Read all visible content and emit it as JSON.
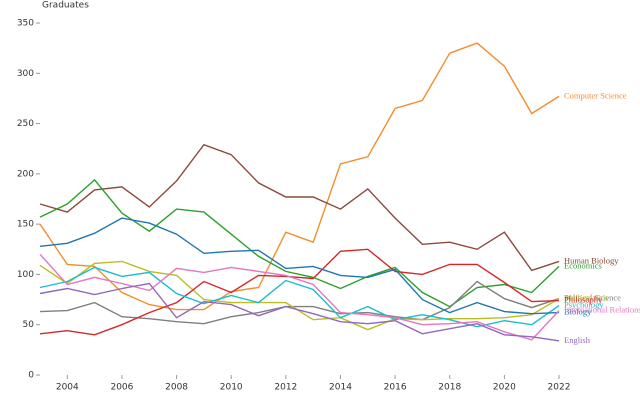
{
  "chart_data": {
    "type": "line",
    "y_label": "Graduates",
    "x": [
      2003,
      2004,
      2005,
      2006,
      2007,
      2008,
      2009,
      2010,
      2011,
      2012,
      2013,
      2014,
      2015,
      2016,
      2017,
      2018,
      2019,
      2020,
      2021,
      2022
    ],
    "xlim": [
      2003,
      2022
    ],
    "xticks": [
      2004,
      2006,
      2008,
      2010,
      2012,
      2014,
      2016,
      2018,
      2020,
      2022
    ],
    "ylim": [
      0,
      350
    ],
    "yticks": [
      0,
      50,
      100,
      150,
      200,
      250,
      300,
      350
    ],
    "grid": false,
    "series": [
      {
        "name": "Computer Science",
        "color": "#f28e2b",
        "values": [
          150,
          110,
          108,
          82,
          70,
          65,
          65,
          83,
          87,
          142,
          132,
          210,
          217,
          265,
          273,
          320,
          330,
          307,
          260,
          277
        ]
      },
      {
        "name": "Human Biology",
        "color": "#8c4a3c",
        "values": [
          170,
          162,
          184,
          187,
          167,
          193,
          229,
          219,
          191,
          177,
          177,
          165,
          185,
          156,
          130,
          132,
          125,
          142,
          104,
          113
        ]
      },
      {
        "name": "Economics",
        "color": "#2ca02c",
        "values": [
          157,
          170,
          194,
          161,
          143,
          165,
          162,
          140,
          118,
          103,
          97,
          86,
          98,
          107,
          82,
          68,
          87,
          90,
          82,
          108
        ]
      },
      {
        "name": "Political Science",
        "color": "#7f7f7f",
        "values": [
          63,
          64,
          72,
          58,
          56,
          53,
          51,
          58,
          62,
          68,
          68,
          61,
          62,
          58,
          55,
          67,
          93,
          76,
          67,
          76
        ]
      },
      {
        "name": "Mathematics",
        "color": "#bcbd22",
        "values": [
          109,
          91,
          111,
          113,
          103,
          99,
          75,
          72,
          72,
          72,
          55,
          57,
          45,
          56,
          55,
          56,
          56,
          57,
          60,
          76
        ]
      },
      {
        "name": "Philosophy",
        "color": "#d62728",
        "values": [
          41,
          44,
          40,
          50,
          62,
          72,
          93,
          82,
          99,
          98,
          96,
          123,
          125,
          103,
          100,
          110,
          110,
          92,
          73,
          74
        ]
      },
      {
        "name": "Psychology",
        "color": "#17becf",
        "values": [
          87,
          93,
          107,
          98,
          102,
          81,
          71,
          79,
          72,
          94,
          85,
          57,
          68,
          55,
          60,
          55,
          48,
          54,
          50,
          69
        ]
      },
      {
        "name": "Biology",
        "color": "#1f77b4",
        "values": [
          128,
          131,
          141,
          156,
          151,
          140,
          121,
          123,
          124,
          106,
          108,
          99,
          97,
          105,
          75,
          62,
          72,
          63,
          61,
          62
        ]
      },
      {
        "name": "International Relations",
        "color": "#e377c2",
        "values": [
          120,
          90,
          97,
          91,
          84,
          106,
          102,
          107,
          103,
          99,
          90,
          62,
          60,
          57,
          50,
          51,
          53,
          43,
          35,
          64
        ]
      },
      {
        "name": "English",
        "color": "#9467bd",
        "values": [
          81,
          86,
          80,
          86,
          91,
          57,
          73,
          70,
          59,
          68,
          61,
          53,
          51,
          54,
          41,
          46,
          51,
          40,
          38,
          34
        ]
      }
    ]
  }
}
